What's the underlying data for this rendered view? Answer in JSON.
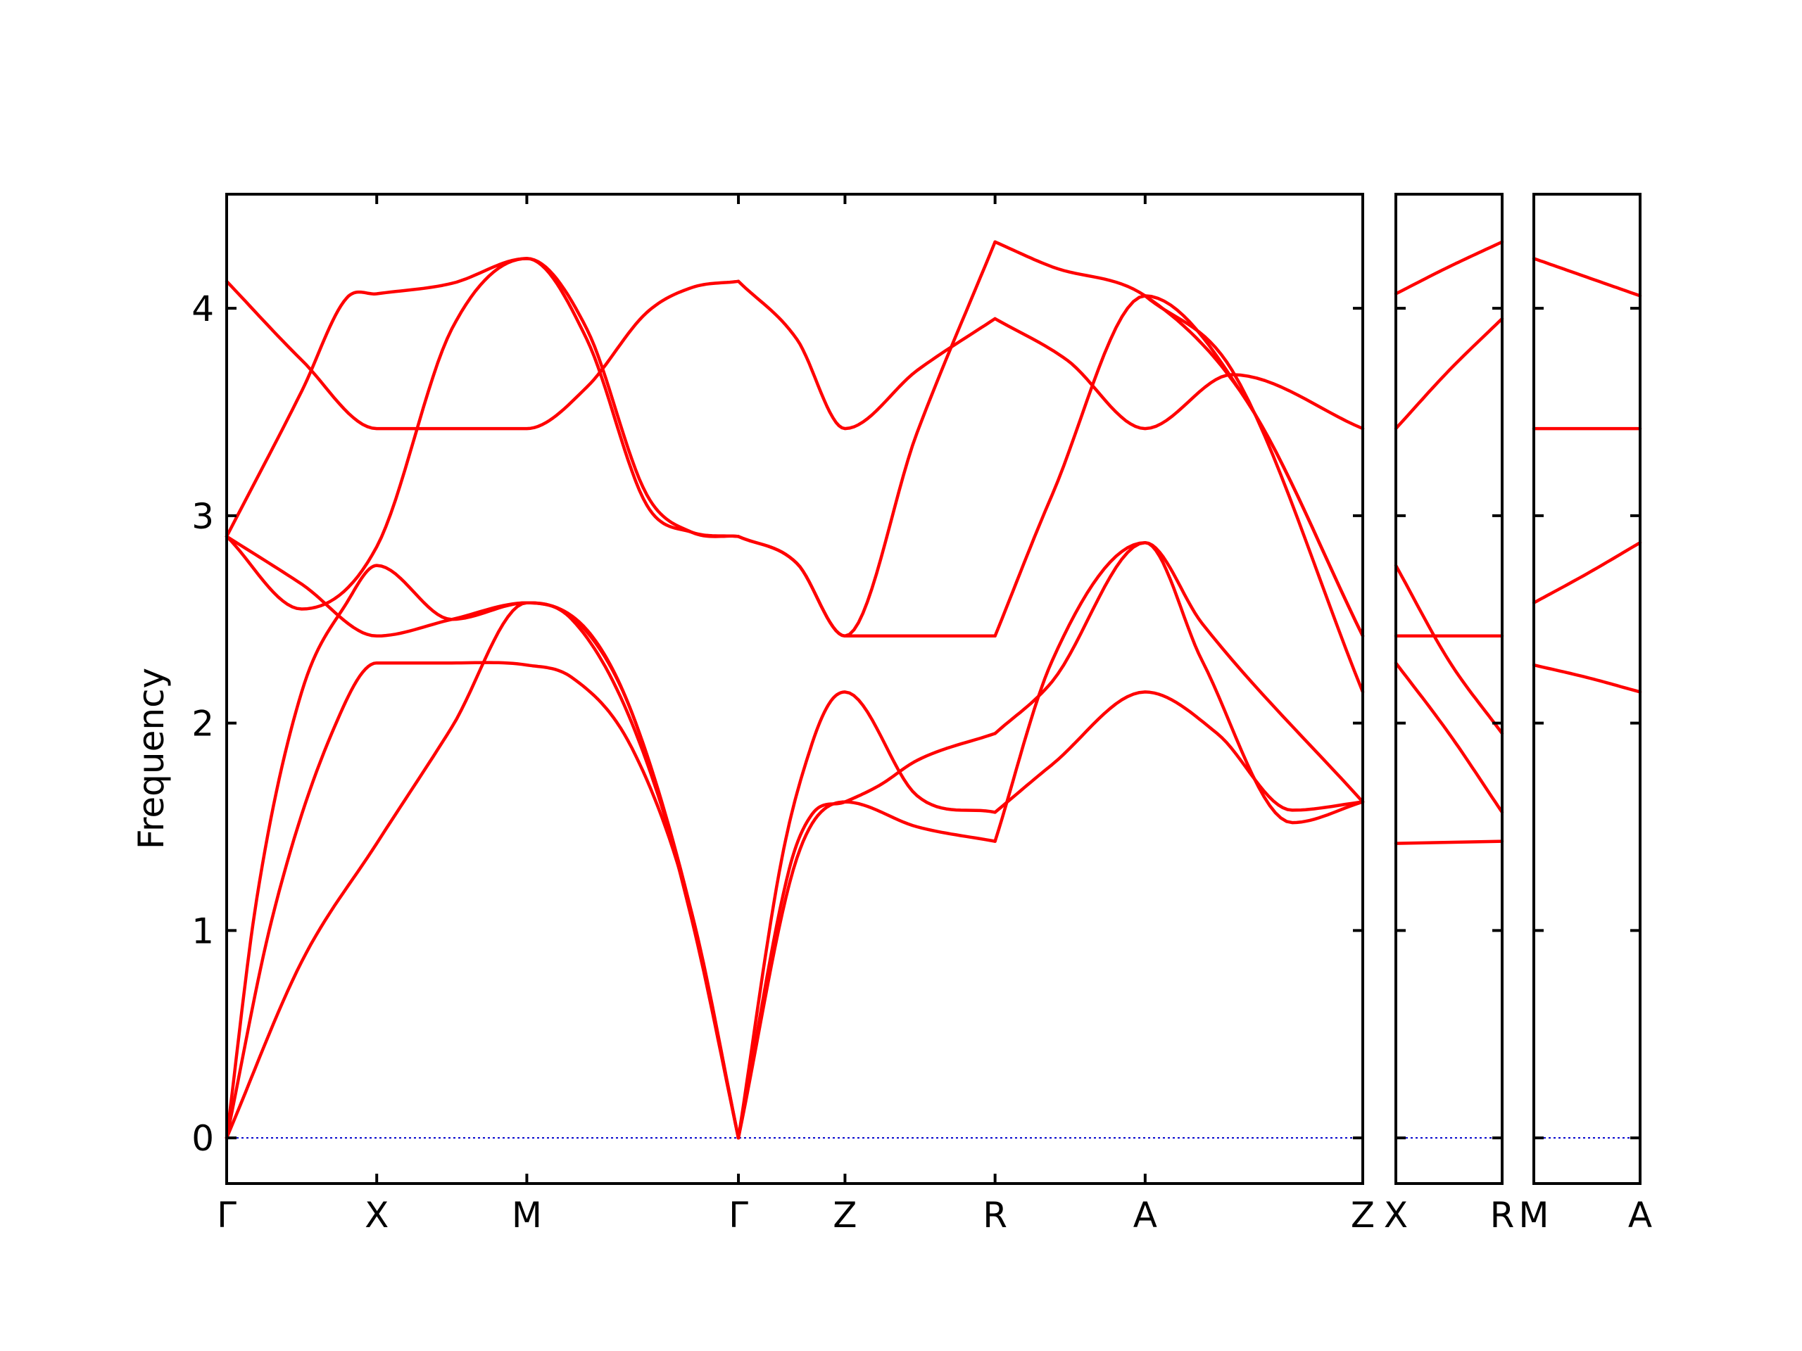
{
  "chart_data": {
    "type": "line",
    "title": "",
    "xlabel": "",
    "ylabel": "Frequency",
    "ylim": [
      -0.22,
      4.55
    ],
    "yticks": [
      0,
      1,
      2,
      3,
      4
    ],
    "line_color": "#ff0000",
    "zero_line_color": "#0000cc",
    "grid": false,
    "panels": [
      {
        "name": "main",
        "xlim": [
          0,
          7.57
        ],
        "ticks": [
          {
            "label": "Γ",
            "x": 0
          },
          {
            "label": "X",
            "x": 1.0
          },
          {
            "label": "M",
            "x": 2.0
          },
          {
            "label": "Γ",
            "x": 3.41
          },
          {
            "label": "Z",
            "x": 4.12
          },
          {
            "label": "R",
            "x": 5.12
          },
          {
            "label": "A",
            "x": 6.12
          },
          {
            "label": "Z",
            "x": 7.57
          }
        ],
        "series": [
          {
            "x": [
              0,
              0.5,
              1.0,
              1.5,
              2.0,
              2.35,
              2.7,
              3.1,
              3.41
            ],
            "y": [
              0,
              0.85,
              1.42,
              1.98,
              2.58,
              2.48,
              2.05,
              1.05,
              0
            ]
          },
          {
            "x": [
              0,
              0.3,
              0.7,
              1.0,
              1.5,
              2.0,
              2.3,
              2.7,
              3.1,
              3.41
            ],
            "y": [
              0,
              1.05,
              1.95,
              2.29,
              2.29,
              2.28,
              2.22,
              1.88,
              1.08,
              0
            ]
          },
          {
            "x": [
              0,
              0.2,
              0.5,
              0.8,
              1.0,
              1.5,
              2.0,
              2.3,
              2.7,
              3.1,
              3.41
            ],
            "y": [
              0,
              1.15,
              2.15,
              2.58,
              2.76,
              2.5,
              2.58,
              2.5,
              2.0,
              1.08,
              0
            ]
          },
          {
            "x": [
              0,
              0.5,
              1.0,
              1.5,
              2.0,
              2.4,
              2.7,
              3.1,
              3.41
            ],
            "y": [
              2.9,
              2.67,
              2.42,
              2.5,
              2.58,
              2.45,
              2.05,
              1.08,
              0
            ]
          },
          {
            "x": [
              0,
              0.5,
              0.8,
              1.0,
              1.5,
              2.0,
              2.4,
              2.8,
              3.1,
              3.41
            ],
            "y": [
              2.9,
              3.6,
              4.05,
              4.07,
              4.12,
              4.24,
              3.9,
              3.1,
              2.92,
              2.9
            ]
          },
          {
            "x": [
              0,
              0.5,
              1.0,
              1.5,
              1.75,
              2.0,
              2.4,
              2.8,
              3.1,
              3.41
            ],
            "y": [
              4.13,
              3.75,
              3.42,
              3.42,
              3.42,
              3.42,
              3.62,
              3.98,
              4.1,
              4.13
            ]
          },
          {
            "x": [
              0,
              0.5,
              1.0,
              1.5,
              2.0,
              2.4,
              2.8,
              3.1,
              3.41
            ],
            "y": [
              2.9,
              2.55,
              2.85,
              3.9,
              4.24,
              3.85,
              3.05,
              2.92,
              2.9
            ]
          },
          {
            "x": [
              3.41,
              3.8,
              4.12,
              4.6,
              5.12
            ],
            "y": [
              0,
              1.35,
              1.62,
              1.5,
              1.43
            ]
          },
          {
            "x": [
              3.41,
              3.75,
              3.9,
              4.12,
              4.35,
              4.6,
              5.12
            ],
            "y": [
              0,
              1.3,
              1.56,
              1.62,
              1.7,
              1.82,
              1.95
            ]
          },
          {
            "x": [
              3.41,
              3.7,
              3.9,
              4.02,
              4.12,
              4.6,
              5.12
            ],
            "y": [
              0,
              1.35,
              1.9,
              2.1,
              2.15,
              1.65,
              1.57
            ]
          },
          {
            "x": [
              3.41,
              3.8,
              4.12,
              4.6,
              5.12
            ],
            "y": [
              2.9,
              2.77,
              2.42,
              2.42,
              2.42
            ]
          },
          {
            "x": [
              3.41,
              3.8,
              4.12,
              4.6,
              5.12
            ],
            "y": [
              2.9,
              2.77,
              2.42,
              3.4,
              4.32
            ]
          },
          {
            "x": [
              3.41,
              3.8,
              4.12,
              4.6,
              5.12
            ],
            "y": [
              4.13,
              3.85,
              3.42,
              3.7,
              3.95
            ]
          },
          {
            "x": [
              5.12,
              5.5,
              6.12,
              6.5,
              7.57
            ],
            "y": [
              1.43,
              2.3,
              2.87,
              2.48,
              1.62
            ]
          },
          {
            "x": [
              5.12,
              5.5,
              6.12,
              6.6,
              7.1,
              7.57
            ],
            "y": [
              1.57,
              1.8,
              2.15,
              1.95,
              1.58,
              1.62
            ]
          },
          {
            "x": [
              5.12,
              5.5,
              6.12,
              6.5,
              7.1,
              7.57
            ],
            "y": [
              1.95,
              2.2,
              2.87,
              2.3,
              1.52,
              1.62
            ]
          },
          {
            "x": [
              5.12,
              5.5,
              6.12,
              6.8,
              7.57
            ],
            "y": [
              2.42,
              3.1,
              4.06,
              3.55,
              2.42
            ]
          },
          {
            "x": [
              5.12,
              5.5,
              6.12,
              6.8,
              7.57
            ],
            "y": [
              4.32,
              4.2,
              4.06,
              3.55,
              2.42
            ]
          },
          {
            "x": [
              5.12,
              5.6,
              6.12,
              6.7,
              7.57
            ],
            "y": [
              3.95,
              3.75,
              3.42,
              3.68,
              3.42
            ]
          },
          {
            "x": [
              6.12,
              6.7,
              7.57
            ],
            "y": [
              4.06,
              3.7,
              2.15
            ]
          }
        ]
      },
      {
        "name": "X-R",
        "xlim": [
          0,
          1
        ],
        "ticks": [
          {
            "label": "X",
            "x": 0
          },
          {
            "label": "R",
            "x": 1
          }
        ],
        "series": [
          {
            "x": [
              0,
              1
            ],
            "y": [
              1.42,
              1.43
            ]
          },
          {
            "x": [
              0,
              0.5,
              1
            ],
            "y": [
              2.29,
              1.95,
              1.57
            ]
          },
          {
            "x": [
              0,
              0.5,
              1
            ],
            "y": [
              2.42,
              2.42,
              2.42
            ]
          },
          {
            "x": [
              0,
              0.5,
              1
            ],
            "y": [
              2.76,
              2.3,
              1.95
            ]
          },
          {
            "x": [
              0,
              0.5,
              1
            ],
            "y": [
              3.42,
              3.7,
              3.95
            ]
          },
          {
            "x": [
              0,
              0.5,
              1
            ],
            "y": [
              4.07,
              4.2,
              4.32
            ]
          }
        ]
      },
      {
        "name": "M-A",
        "xlim": [
          0,
          1
        ],
        "ticks": [
          {
            "label": "M",
            "x": 0
          },
          {
            "label": "A",
            "x": 1
          }
        ],
        "series": [
          {
            "x": [
              0,
              0.5,
              1
            ],
            "y": [
              2.28,
              2.22,
              2.15
            ]
          },
          {
            "x": [
              0,
              0.5,
              1
            ],
            "y": [
              2.58,
              2.72,
              2.87
            ]
          },
          {
            "x": [
              0,
              1
            ],
            "y": [
              3.42,
              3.42
            ]
          },
          {
            "x": [
              0,
              0.5,
              1
            ],
            "y": [
              4.24,
              4.15,
              4.06
            ]
          }
        ]
      }
    ]
  }
}
